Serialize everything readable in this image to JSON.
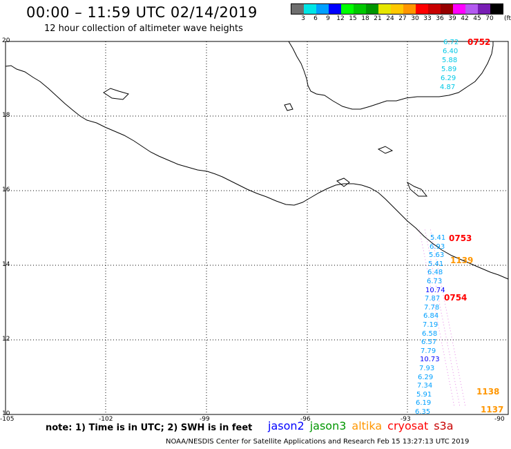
{
  "header": {
    "title": "00:00  – 11:59 UTC 02/14/2019",
    "subtitle": "12 hour collection of altimeter wave heights"
  },
  "colorbar": {
    "colors": [
      "#6e6e6e",
      "#00e6e6",
      "#00a0ff",
      "#0000ff",
      "#00ff00",
      "#00c800",
      "#009600",
      "#e6e600",
      "#ffc800",
      "#ff9600",
      "#ff0000",
      "#c80000",
      "#960000",
      "#ff00ff",
      "#b45af0",
      "#781eb4",
      "#000000"
    ],
    "labels": [
      "3",
      "6",
      "9",
      "12",
      "15",
      "18",
      "21",
      "24",
      "27",
      "30",
      "33",
      "36",
      "39",
      "42",
      "45",
      "70"
    ],
    "unit": "(ft)"
  },
  "axes": {
    "lat_labels": [
      "20",
      "18",
      "16",
      "14",
      "12",
      "10"
    ],
    "lon_labels": [
      "-105",
      "-102",
      "-99",
      "-96",
      "-93",
      "-90"
    ]
  },
  "altimeter": {
    "swh_a": [
      "6.72",
      "6.40",
      "5.88",
      "5.89",
      "6.29",
      "4.87"
    ],
    "swh_b": [
      "5.41",
      "6.93",
      "5.63",
      "5.41",
      "6.48",
      "6.73",
      "10.74",
      "7.87",
      "7.78",
      "6.84",
      "7.19",
      "6.58",
      "6.57",
      "7.79",
      "10.73",
      "7.93",
      "6.29",
      "7.34",
      "5.91",
      "6.19",
      "6.35"
    ],
    "swh_b_colors": [
      "#00a0ff",
      "#00a0ff",
      "#00a0ff",
      "#00a0ff",
      "#00a0ff",
      "#00a0ff",
      "#0000ff",
      "#00a0ff",
      "#00a0ff",
      "#00a0ff",
      "#00a0ff",
      "#00a0ff",
      "#00a0ff",
      "#00a0ff",
      "#0000ff",
      "#00a0ff",
      "#00a0ff",
      "#00a0ff",
      "#00a0ff",
      "#00a0ff",
      "#00a0ff"
    ],
    "times_cryosat": [
      "0752",
      "0753",
      "0754"
    ],
    "times_altika": [
      "1139",
      "1138",
      "1137"
    ]
  },
  "footer": {
    "note": "note:  1) Time is in UTC;  2) SWH is in feet",
    "legend": [
      {
        "label": "jason2",
        "color": "#0000ff"
      },
      {
        "label": "jason3",
        "color": "#009600"
      },
      {
        "label": "altika",
        "color": "#ff9600"
      },
      {
        "label": "cryosat",
        "color": "#ff0000"
      },
      {
        "label": "s3a",
        "color": "#c80000"
      }
    ],
    "credit": "NOAA/NESDIS Center for Satellite Applications and Research    Feb 15 13:27:13 UTC 2019"
  }
}
